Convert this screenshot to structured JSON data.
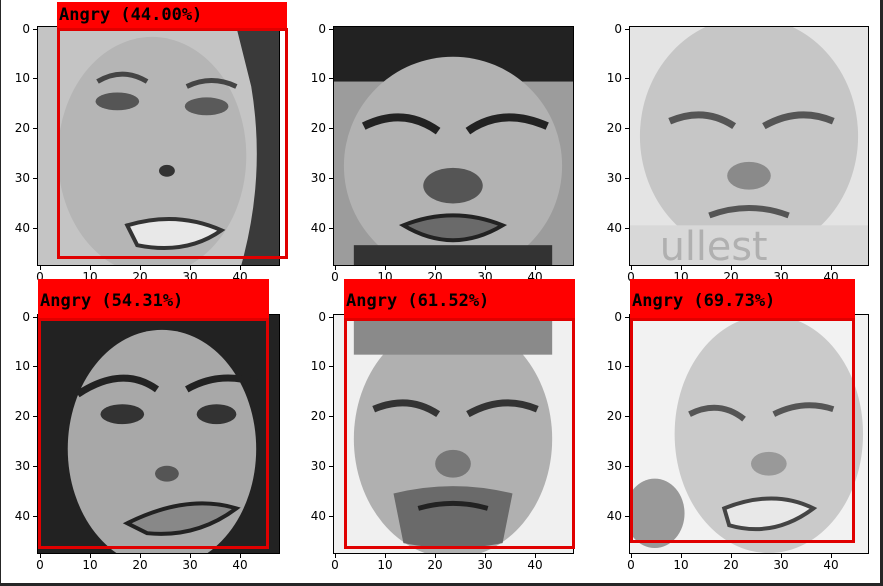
{
  "figure": {
    "y_ticks": [
      "0",
      "10",
      "20",
      "30",
      "40"
    ],
    "x_ticks": [
      "0",
      "10",
      "20",
      "30",
      "40"
    ],
    "panels": [
      {
        "id": "p1",
        "detection_label": "Angry (44.00%)",
        "has_detection": true,
        "tone": "#b8b8b8"
      },
      {
        "id": "p2",
        "detection_label": "",
        "has_detection": false,
        "tone": "#a0a0a0"
      },
      {
        "id": "p3",
        "detection_label": "",
        "has_detection": false,
        "tone": "#c8c8c8"
      },
      {
        "id": "p4",
        "detection_label": "Angry (54.31%)",
        "has_detection": true,
        "tone": "#9a9a9a"
      },
      {
        "id": "p5",
        "detection_label": "Angry (61.52%)",
        "has_detection": true,
        "tone": "#b0b0b0"
      },
      {
        "id": "p6",
        "detection_label": "Angry (69.73%)",
        "has_detection": true,
        "tone": "#d0d0d0"
      }
    ],
    "colors": {
      "box": "#e00000",
      "label_bg": "#ff0000",
      "label_text": "#000000"
    }
  }
}
